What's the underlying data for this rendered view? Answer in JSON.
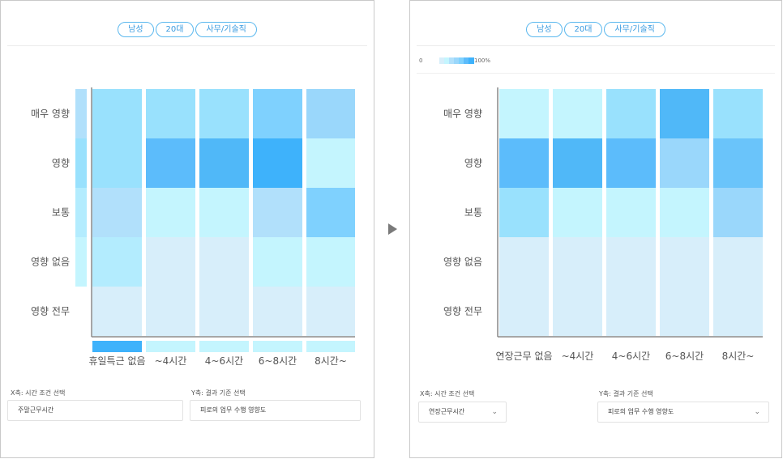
{
  "filters": [
    "남성",
    "20대",
    "사무/기술직"
  ],
  "legend": {
    "min_label": "0",
    "max_label": "100%"
  },
  "colors": {
    "scale": [
      "#d7eefa",
      "#c4f5fe",
      "#b3ecfe",
      "#b1e0fb",
      "#99e1fd",
      "#9ad7fb",
      "#7fd1fe",
      "#6ac4fa",
      "#5cbcfb",
      "#50b8f8",
      "#3eb2fb"
    ],
    "axis": "#888888"
  },
  "chart_data": [
    {
      "type": "heatmap",
      "title": "",
      "xlabel": "주말근무시간",
      "ylabel": "피로의 업무 수행 영향도",
      "categories": [
        "휴일특근 없음",
        "~4시간",
        "4~6시간",
        "6~8시간",
        "8시간~"
      ],
      "y_categories": [
        "매우 영향",
        "영향",
        "보통",
        "영향 없음",
        "영향 전무"
      ],
      "values": [
        [
          30,
          30,
          30,
          45,
          40
        ],
        [
          27,
          60,
          65,
          75,
          10
        ],
        [
          25,
          10,
          5,
          20,
          45
        ],
        [
          15,
          0,
          0,
          5,
          5
        ],
        [
          3,
          0,
          0,
          0,
          0
        ]
      ],
      "marginal_y": [
        20,
        30,
        15,
        10,
        0
      ],
      "marginal_x": [
        80,
        10,
        10,
        10,
        10
      ]
    },
    {
      "type": "heatmap",
      "title": "",
      "xlabel": "연장근무시간",
      "ylabel": "피로의 업무 수행 영향도",
      "categories": [
        "연장근무 없음",
        "~4시간",
        "4~6시간",
        "6~8시간",
        "8시간~"
      ],
      "y_categories": [
        "매우 영향",
        "영향",
        "보통",
        "영향 없음",
        "영향 전무"
      ],
      "values": [
        [
          10,
          10,
          30,
          70,
          30
        ],
        [
          60,
          70,
          60,
          35,
          50
        ],
        [
          30,
          10,
          5,
          10,
          40
        ],
        [
          0,
          0,
          0,
          0,
          0
        ],
        [
          0,
          0,
          0,
          0,
          0
        ]
      ]
    }
  ],
  "controls": {
    "left": {
      "x_label": "X축: 시간 조건 선택",
      "x_value": "주말근무시간",
      "y_label": "Y축: 결과 기준 선택",
      "y_value": "피로의 업무 수행 영향도"
    },
    "right": {
      "x_label": "X축: 시간 조건 선택",
      "x_value": "연장근무시간",
      "y_label": "Y축: 결과 기준 선택",
      "y_value": "피로의 업무 수행 영향도",
      "chevron": "⌄"
    }
  }
}
